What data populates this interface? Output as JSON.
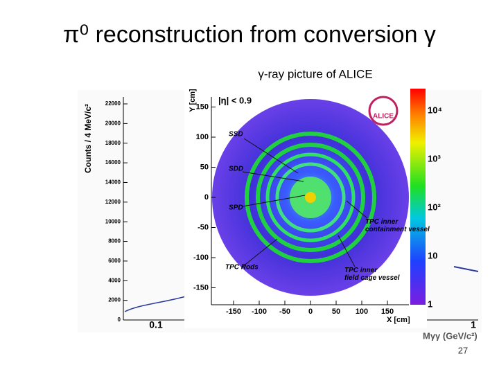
{
  "slide": {
    "title": "π⁰ reconstruction from conversion γ",
    "subtitle": "γ-ray picture of ALICE",
    "page_number": "27"
  },
  "mass_plot": {
    "y_label": "Counts / 4 MeV/c²",
    "x_label": "Mγγ (GeV/c²)",
    "yticks": [
      0,
      2000,
      4000,
      6000,
      8000,
      10000,
      12000,
      14000,
      16000,
      18000,
      20000,
      22000
    ],
    "xticks": [
      "0.1",
      "1"
    ]
  },
  "conversion_map": {
    "y_label": "Y [cm]",
    "x_label": "X [cm]",
    "eta_cut": "|η| < 0.9",
    "logo": "ALICE",
    "yticks": [
      150,
      100,
      50,
      0,
      -50,
      -100,
      -150
    ],
    "xticks": [
      -150,
      -100,
      -50,
      0,
      50,
      100,
      150
    ],
    "color_scale": [
      "10⁴",
      "10³",
      "10²",
      "10",
      "1"
    ],
    "annotations": [
      "SSD",
      "SDD",
      "SPD",
      "TPC inner containment vessel",
      "TPC Rods",
      "TPC inner field cage vessel"
    ]
  }
}
